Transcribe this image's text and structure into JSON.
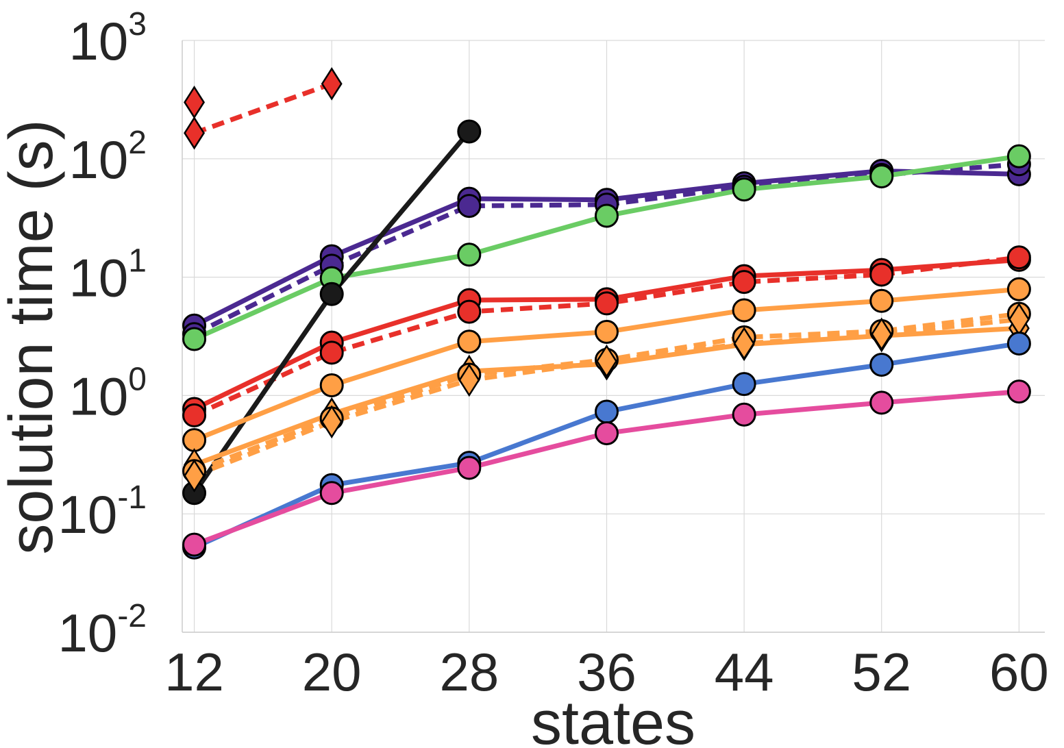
{
  "chart_data": {
    "type": "line",
    "title": "",
    "xlabel": "states",
    "ylabel": "solution time (s)",
    "x_ticks": [
      12,
      20,
      28,
      36,
      44,
      52,
      60
    ],
    "y_scale": "log",
    "y_ticks": [
      {
        "base": "10",
        "exp": "3",
        "value": 1000
      },
      {
        "base": "10",
        "exp": "2",
        "value": 100
      },
      {
        "base": "10",
        "exp": "1",
        "value": 10
      },
      {
        "base": "10",
        "exp": "0",
        "value": 1
      },
      {
        "base": "10",
        "exp": "-1",
        "value": 0.1
      },
      {
        "base": "10",
        "exp": "-2",
        "value": 0.01
      }
    ],
    "xlim": [
      11.3,
      61.5
    ],
    "ylim": [
      0.01,
      1000
    ],
    "grid": true,
    "legend": "none",
    "series": [
      {
        "color": "#4b2991",
        "dash": "solid",
        "marker": "circle",
        "x": [
          12,
          20,
          28,
          36,
          44,
          52,
          60
        ],
        "y": [
          3.9,
          15,
          46,
          45,
          62,
          79,
          74
        ]
      },
      {
        "color": "#4b2991",
        "dash": "dashed",
        "marker": "circle",
        "x": [
          12,
          20,
          28,
          36,
          44,
          52,
          60
        ],
        "y": [
          3.3,
          12.5,
          40,
          41,
          58,
          73,
          90
        ]
      },
      {
        "color": "#6acc64",
        "dash": "solid",
        "marker": "circle",
        "x": [
          12,
          20,
          28,
          36,
          44,
          52,
          60
        ],
        "y": [
          3.0,
          9.8,
          15.5,
          33,
          55,
          71,
          105
        ]
      },
      {
        "color": "#e8302a",
        "dash": "solid",
        "marker": "circle",
        "x": [
          12,
          20,
          28,
          36,
          44,
          52,
          60
        ],
        "y": [
          0.77,
          2.8,
          6.4,
          6.5,
          10.2,
          11.5,
          14
        ]
      },
      {
        "color": "#e8302a",
        "dash": "dashed",
        "marker": "circle",
        "x": [
          12,
          20,
          28,
          36,
          44,
          52,
          60
        ],
        "y": [
          0.68,
          2.3,
          5.1,
          6.0,
          9.1,
          10.5,
          14.7
        ]
      },
      {
        "color": "#e8302a",
        "dash": "dashed",
        "marker": "diamond",
        "x": [
          12,
          20
        ],
        "y": [
          165,
          430
        ]
      },
      {
        "color": "#e8302a",
        "dash": "none",
        "marker": "diamond",
        "x": [
          12
        ],
        "y": [
          300
        ]
      },
      {
        "color": "#1a1a1a",
        "dash": "solid",
        "marker": "circle",
        "x": [
          12,
          20,
          28
        ],
        "y": [
          0.15,
          7.2,
          170
        ]
      },
      {
        "color": "#ff9f45",
        "dash": "solid",
        "marker": "circle",
        "x": [
          12,
          20,
          28,
          36,
          44,
          52,
          60
        ],
        "y": [
          0.42,
          1.22,
          2.85,
          3.45,
          5.25,
          6.3,
          7.9
        ]
      },
      {
        "color": "#ff9f45",
        "dash": "solid",
        "marker": "diamond",
        "x": [
          12,
          20,
          28,
          36,
          44,
          52,
          60
        ],
        "y": [
          0.26,
          0.7,
          1.6,
          1.85,
          2.7,
          3.2,
          3.7
        ]
      },
      {
        "color": "#ff9f45",
        "dash": "dashed",
        "marker": "circle",
        "x": [
          12,
          20,
          28,
          36,
          44,
          52,
          60
        ],
        "y": [
          0.23,
          0.64,
          1.5,
          2.0,
          3.1,
          3.5,
          4.9
        ]
      },
      {
        "color": "#ff9f45",
        "dash": "dashed",
        "marker": "diamond",
        "x": [
          12,
          20,
          28,
          36,
          44,
          52,
          60
        ],
        "y": [
          0.21,
          0.6,
          1.35,
          1.95,
          2.75,
          3.3,
          4.4
        ]
      },
      {
        "color": "#4878d0",
        "dash": "solid",
        "marker": "circle",
        "x": [
          12,
          20,
          28,
          36,
          44,
          52,
          60
        ],
        "y": [
          0.052,
          0.175,
          0.27,
          0.73,
          1.25,
          1.82,
          2.75
        ]
      },
      {
        "color": "#e54c9e",
        "dash": "solid",
        "marker": "circle",
        "x": [
          12,
          20,
          28,
          36,
          44,
          52,
          60
        ],
        "y": [
          0.055,
          0.15,
          0.245,
          0.48,
          0.69,
          0.87,
          1.08
        ]
      }
    ]
  }
}
